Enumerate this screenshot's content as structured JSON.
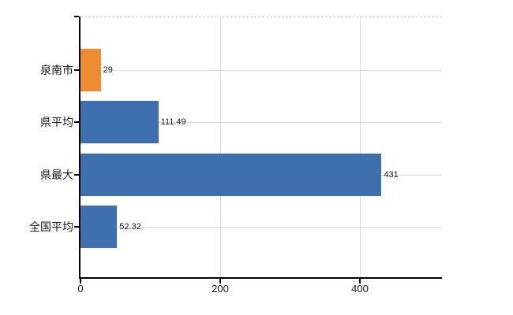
{
  "chart_data": {
    "type": "bar",
    "orientation": "horizontal",
    "title": "",
    "categories": [
      "泉南市",
      "県平均",
      "県最大",
      "全国平均"
    ],
    "values": [
      29,
      111.49,
      431,
      52.32
    ],
    "value_labels": [
      "29",
      "111.49",
      "431",
      "52.32"
    ],
    "bar_colors": [
      "#ee8c33",
      "#3e6fae",
      "#3e6fae",
      "#3e6fae"
    ],
    "x_axis": {
      "min": 0,
      "max": 517.5,
      "ticks": [
        0,
        200,
        400
      ],
      "tick_labels": [
        "0",
        "200",
        "400"
      ]
    },
    "grid": {
      "vertical_gridlines_at": [
        200,
        400
      ],
      "horizontal_gridlines": "at each category center",
      "top_border": "dashed"
    },
    "legend": "none"
  },
  "colors": {
    "background": "#ffffff",
    "axis": "#000000",
    "gridline": "#d9d9d9",
    "top_border": "#c9c9c9",
    "category_text": "#1a1a1a",
    "value_text": "#1a1a1a",
    "bar_orange": "#ee8c33",
    "bar_blue": "#3e6fae"
  }
}
